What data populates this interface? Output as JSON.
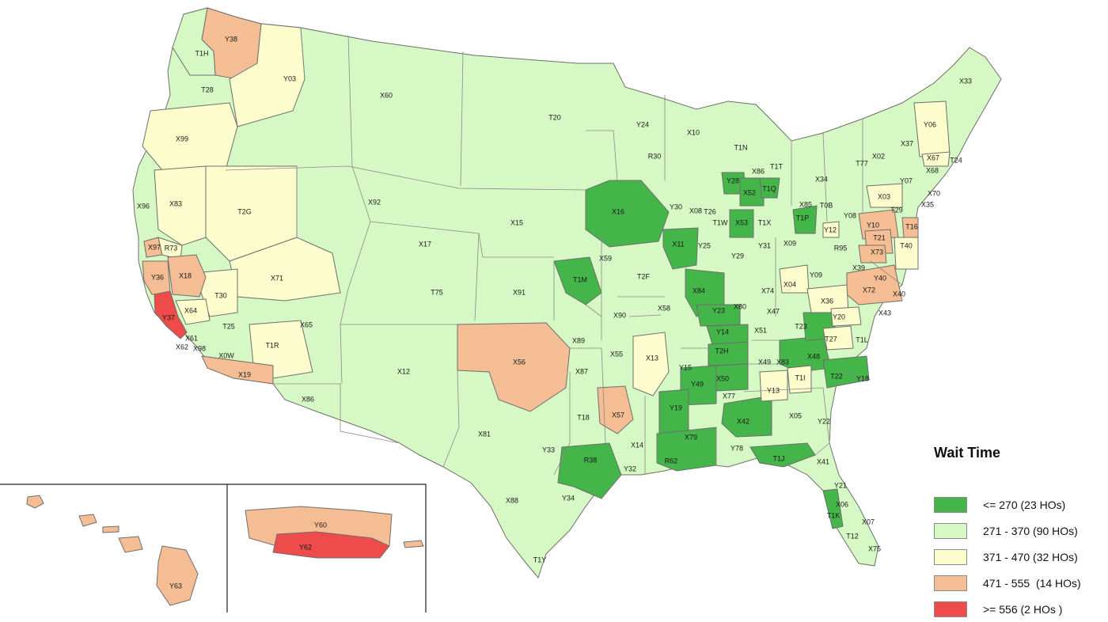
{
  "legend": {
    "title": "Wait Time",
    "items": [
      {
        "label": "<= 270 (23 HOs)",
        "color": "#44b549"
      },
      {
        "label": "271 - 370 (90 HOs)",
        "color": "#d6f8c4"
      },
      {
        "label": "371 - 470 (32 HOs)",
        "color": "#fdfccd"
      },
      {
        "label": "471 - 555  (14 HOs)",
        "color": "#f4bd94"
      },
      {
        "label": ">= 556 (2 HOs )",
        "color": "#ee4b4b"
      }
    ]
  },
  "regions": [
    {
      "code": "Y38",
      "tier": 3
    },
    {
      "code": "T1H",
      "tier": 1
    },
    {
      "code": "T28",
      "tier": 1
    },
    {
      "code": "Y03",
      "tier": 2
    },
    {
      "code": "X60",
      "tier": 1
    },
    {
      "code": "T20",
      "tier": 1
    },
    {
      "code": "X99",
      "tier": 2
    },
    {
      "code": "X96",
      "tier": 1
    },
    {
      "code": "X83",
      "tier": 2
    },
    {
      "code": "T2G",
      "tier": 2
    },
    {
      "code": "X92",
      "tier": 1
    },
    {
      "code": "X97",
      "tier": 3
    },
    {
      "code": "R73",
      "tier": 2
    },
    {
      "code": "Y36",
      "tier": 3
    },
    {
      "code": "X18",
      "tier": 3
    },
    {
      "code": "X71",
      "tier": 2
    },
    {
      "code": "T30",
      "tier": 2
    },
    {
      "code": "Y37",
      "tier": 4
    },
    {
      "code": "X64",
      "tier": 2
    },
    {
      "code": "T25",
      "tier": 1
    },
    {
      "code": "X61",
      "tier": 1
    },
    {
      "code": "X62",
      "tier": 1
    },
    {
      "code": "X98",
      "tier": 1
    },
    {
      "code": "X0W",
      "tier": 1
    },
    {
      "code": "T1R",
      "tier": 2
    },
    {
      "code": "X65",
      "tier": 1
    },
    {
      "code": "X19",
      "tier": 3
    },
    {
      "code": "X86",
      "tier": 1
    },
    {
      "code": "X17",
      "tier": 1
    },
    {
      "code": "T75",
      "tier": 1
    },
    {
      "code": "X12",
      "tier": 1
    },
    {
      "code": "X15",
      "tier": 1
    },
    {
      "code": "X91",
      "tier": 1
    },
    {
      "code": "X56",
      "tier": 3
    },
    {
      "code": "X81",
      "tier": 1
    },
    {
      "code": "Y24",
      "tier": 1
    },
    {
      "code": "R30",
      "tier": 1
    },
    {
      "code": "X16",
      "tier": 0
    },
    {
      "code": "X10",
      "tier": 1
    },
    {
      "code": "T1N",
      "tier": 1
    },
    {
      "code": "Y28",
      "tier": 0
    },
    {
      "code": "X52",
      "tier": 0
    },
    {
      "code": "X86",
      "tier": 1
    },
    {
      "code": "T1T",
      "tier": 1
    },
    {
      "code": "T1Q",
      "tier": 0
    },
    {
      "code": "X34",
      "tier": 1
    },
    {
      "code": "Y30",
      "tier": 1
    },
    {
      "code": "X08",
      "tier": 1
    },
    {
      "code": "T26",
      "tier": 1
    },
    {
      "code": "X53",
      "tier": 0
    },
    {
      "code": "T1W",
      "tier": 1
    },
    {
      "code": "T1X",
      "tier": 1
    },
    {
      "code": "T1P",
      "tier": 0
    },
    {
      "code": "X85",
      "tier": 1
    },
    {
      "code": "T0B",
      "tier": 1
    },
    {
      "code": "X11",
      "tier": 0
    },
    {
      "code": "Y25",
      "tier": 1
    },
    {
      "code": "T1M",
      "tier": 0
    },
    {
      "code": "X59",
      "tier": 1
    },
    {
      "code": "T2F",
      "tier": 1
    },
    {
      "code": "X58",
      "tier": 1
    },
    {
      "code": "X84",
      "tier": 0
    },
    {
      "code": "Y29",
      "tier": 1
    },
    {
      "code": "X09",
      "tier": 1
    },
    {
      "code": "Y31",
      "tier": 1
    },
    {
      "code": "R95",
      "tier": 1
    },
    {
      "code": "Y08",
      "tier": 1
    },
    {
      "code": "X90",
      "tier": 1
    },
    {
      "code": "Y23",
      "tier": 0
    },
    {
      "code": "X80",
      "tier": 1
    },
    {
      "code": "X47",
      "tier": 1
    },
    {
      "code": "X74",
      "tier": 1
    },
    {
      "code": "X04",
      "tier": 2
    },
    {
      "code": "Y09",
      "tier": 1
    },
    {
      "code": "X36",
      "tier": 2
    },
    {
      "code": "X89",
      "tier": 1
    },
    {
      "code": "X55",
      "tier": 1
    },
    {
      "code": "X13",
      "tier": 2
    },
    {
      "code": "Y14",
      "tier": 0
    },
    {
      "code": "T2H",
      "tier": 0
    },
    {
      "code": "X51",
      "tier": 1
    },
    {
      "code": "T23",
      "tier": 0
    },
    {
      "code": "Y20",
      "tier": 2
    },
    {
      "code": "T27",
      "tier": 2
    },
    {
      "code": "X87",
      "tier": 1
    },
    {
      "code": "Y15",
      "tier": 1
    },
    {
      "code": "Y49",
      "tier": 0
    },
    {
      "code": "X50",
      "tier": 0
    },
    {
      "code": "X49",
      "tier": 1
    },
    {
      "code": "X83",
      "tier": 1
    },
    {
      "code": "X48",
      "tier": 0
    },
    {
      "code": "T1L",
      "tier": 1
    },
    {
      "code": "T22",
      "tier": 0
    },
    {
      "code": "Y18",
      "tier": 1
    },
    {
      "code": "T1I",
      "tier": 2
    },
    {
      "code": "Y13",
      "tier": 2
    },
    {
      "code": "X57",
      "tier": 3
    },
    {
      "code": "T18",
      "tier": 1
    },
    {
      "code": "Y19",
      "tier": 0
    },
    {
      "code": "X77",
      "tier": 1
    },
    {
      "code": "X42",
      "tier": 0
    },
    {
      "code": "X05",
      "tier": 1
    },
    {
      "code": "Y22",
      "tier": 1
    },
    {
      "code": "X79",
      "tier": 0
    },
    {
      "code": "Y78",
      "tier": 1
    },
    {
      "code": "R38",
      "tier": 0
    },
    {
      "code": "X14",
      "tier": 1
    },
    {
      "code": "Y33",
      "tier": 1
    },
    {
      "code": "Y32",
      "tier": 1
    },
    {
      "code": "R62",
      "tier": 1
    },
    {
      "code": "T1J",
      "tier": 0
    },
    {
      "code": "X41",
      "tier": 1
    },
    {
      "code": "X88",
      "tier": 1
    },
    {
      "code": "Y34",
      "tier": 1
    },
    {
      "code": "T1Y",
      "tier": 1
    },
    {
      "code": "Y21",
      "tier": 1
    },
    {
      "code": "X06",
      "tier": 1
    },
    {
      "code": "T1K",
      "tier": 0
    },
    {
      "code": "X07",
      "tier": 1
    },
    {
      "code": "T12",
      "tier": 1
    },
    {
      "code": "X75",
      "tier": 1
    },
    {
      "code": "X33",
      "tier": 1
    },
    {
      "code": "Y06",
      "tier": 2
    },
    {
      "code": "X37",
      "tier": 1
    },
    {
      "code": "T77",
      "tier": 1
    },
    {
      "code": "X02",
      "tier": 1
    },
    {
      "code": "X67",
      "tier": 2
    },
    {
      "code": "T24",
      "tier": 1
    },
    {
      "code": "X68",
      "tier": 1
    },
    {
      "code": "X03",
      "tier": 2
    },
    {
      "code": "Y07",
      "tier": 1
    },
    {
      "code": "X70",
      "tier": 1
    },
    {
      "code": "X35",
      "tier": 1
    },
    {
      "code": "T29",
      "tier": 1
    },
    {
      "code": "X40",
      "tier": 2
    },
    {
      "code": "Y10",
      "tier": 3
    },
    {
      "code": "T16",
      "tier": 3
    },
    {
      "code": "Y12",
      "tier": 2
    },
    {
      "code": "T21",
      "tier": 3
    },
    {
      "code": "X73",
      "tier": 3
    },
    {
      "code": "T40",
      "tier": 2
    },
    {
      "code": "X39",
      "tier": 1
    },
    {
      "code": "X72",
      "tier": 3
    },
    {
      "code": "Y40",
      "tier": 1
    },
    {
      "code": "X43",
      "tier": 1
    },
    {
      "code": "Y60",
      "tier": 3
    },
    {
      "code": "Y62",
      "tier": 4
    },
    {
      "code": "Y63",
      "tier": 3
    }
  ]
}
